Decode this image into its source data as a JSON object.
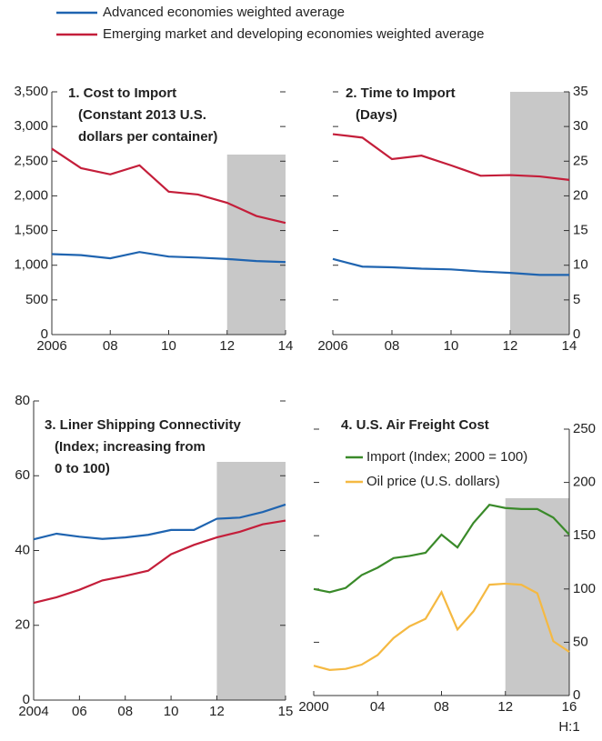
{
  "chart_data": [
    {
      "type": "line",
      "title": "1. Cost to Import",
      "subtitle": [
        "(Constant 2013 U.S.",
        "dollars per container)"
      ],
      "x": [
        2006,
        2007,
        2008,
        2009,
        2010,
        2011,
        2012,
        2013,
        2014
      ],
      "series": [
        {
          "name": "Advanced economies weighted average",
          "color": "#1f64b0",
          "values": [
            1160,
            1145,
            1100,
            1190,
            1125,
            1110,
            1090,
            1060,
            1045
          ]
        },
        {
          "name": "Emerging market and developing economies weighted average",
          "color": "#c41e3a",
          "values": [
            2680,
            2400,
            2310,
            2440,
            2060,
            2020,
            1900,
            1710,
            1610
          ]
        }
      ],
      "xlim": [
        2006,
        2014
      ],
      "xticks": [
        2006,
        {
          "value": 2008,
          "label": "08"
        },
        {
          "value": 2010,
          "label": "10"
        },
        {
          "value": 2012,
          "label": "12"
        },
        {
          "value": 2014,
          "label": "14"
        }
      ],
      "ylim": [
        0,
        3500
      ],
      "yticks": [
        0,
        500,
        {
          "value": 1000,
          "label": "1,000"
        },
        {
          "value": 1500,
          "label": "1,500"
        },
        {
          "value": 2000,
          "label": "2,000"
        },
        {
          "value": 2500,
          "label": "2,500"
        },
        {
          "value": 3000,
          "label": "3,000"
        },
        {
          "value": 3500,
          "label": "3,500"
        }
      ],
      "y_axis": "left",
      "shade": [
        2012,
        2014
      ]
    },
    {
      "type": "line",
      "title": "2. Time to Import",
      "subtitle": [
        "(Days)"
      ],
      "x": [
        2006,
        2007,
        2008,
        2009,
        2010,
        2011,
        2012,
        2013,
        2014
      ],
      "series": [
        {
          "color": "#1f64b0",
          "values": [
            10.9,
            9.8,
            9.7,
            9.5,
            9.4,
            9.1,
            8.9,
            8.6,
            8.6
          ]
        },
        {
          "color": "#c41e3a",
          "values": [
            28.9,
            28.4,
            25.3,
            25.8,
            24.4,
            22.9,
            23.0,
            22.8,
            22.3
          ]
        }
      ],
      "xlim": [
        2006,
        2014
      ],
      "xticks": [
        2006,
        {
          "value": 2008,
          "label": "08"
        },
        {
          "value": 2010,
          "label": "10"
        },
        {
          "value": 2012,
          "label": "12"
        },
        {
          "value": 2014,
          "label": "14"
        }
      ],
      "ylim": [
        0,
        35
      ],
      "yticks": [
        0,
        5,
        10,
        15,
        20,
        25,
        30,
        35
      ],
      "y_axis": "right",
      "shade": [
        2012,
        2014
      ]
    },
    {
      "type": "line",
      "title": "3. Liner Shipping Connectivity",
      "subtitle": [
        "(Index; increasing from",
        "0 to 100)"
      ],
      "x": [
        2004,
        2005,
        2006,
        2007,
        2008,
        2009,
        2010,
        2011,
        2012,
        2013,
        2014,
        2015
      ],
      "series": [
        {
          "color": "#1f64b0",
          "values": [
            43.0,
            44.5,
            43.7,
            43.1,
            43.5,
            44.2,
            45.5,
            45.5,
            48.5,
            48.8,
            50.3,
            52.3
          ]
        },
        {
          "color": "#c41e3a",
          "values": [
            26.0,
            27.5,
            29.5,
            32.0,
            33.2,
            34.6,
            39.0,
            41.5,
            43.5,
            45.0,
            47.0,
            48.0
          ]
        }
      ],
      "xlim": [
        2004,
        2015
      ],
      "xticks": [
        2004,
        {
          "value": 2006,
          "label": "06"
        },
        {
          "value": 2008,
          "label": "08"
        },
        {
          "value": 2010,
          "label": "10"
        },
        {
          "value": 2012,
          "label": "12"
        },
        {
          "value": 2015,
          "label": "15"
        }
      ],
      "ylim": [
        0,
        80
      ],
      "yticks": [
        0,
        20,
        40,
        60,
        80
      ],
      "y_axis": "left",
      "shade": [
        2012,
        2015
      ]
    },
    {
      "type": "line",
      "title": "4. U.S. Air Freight Cost",
      "x_note": "H:1",
      "x": [
        2000,
        2001,
        2002,
        2003,
        2004,
        2005,
        2006,
        2007,
        2008,
        2009,
        2010,
        2011,
        2012,
        2013,
        2014,
        2015,
        2016
      ],
      "series": [
        {
          "name": "Import (Index; 2000 = 100)",
          "color": "#3a8a2a",
          "values": [
            100,
            97,
            101,
            113,
            120,
            129,
            131,
            134,
            151,
            139,
            162,
            179,
            176,
            175,
            175,
            167,
            151
          ]
        },
        {
          "name": "Oil price (U.S. dollars)",
          "color": "#f5b942",
          "values": [
            28,
            24,
            25,
            29,
            38,
            54,
            65,
            72,
            97,
            62,
            79,
            104,
            105,
            104,
            96,
            51,
            41
          ]
        }
      ],
      "xlim": [
        2000,
        2016
      ],
      "xticks": [
        2000,
        {
          "value": 2004,
          "label": "04"
        },
        {
          "value": 2008,
          "label": "08"
        },
        {
          "value": 2012,
          "label": "12"
        },
        {
          "value": 2016,
          "label": "16"
        }
      ],
      "ylim": [
        0,
        250
      ],
      "yticks": [
        0,
        50,
        100,
        150,
        200,
        250
      ],
      "y_axis": "right",
      "shade": [
        2012,
        2016
      ]
    }
  ]
}
